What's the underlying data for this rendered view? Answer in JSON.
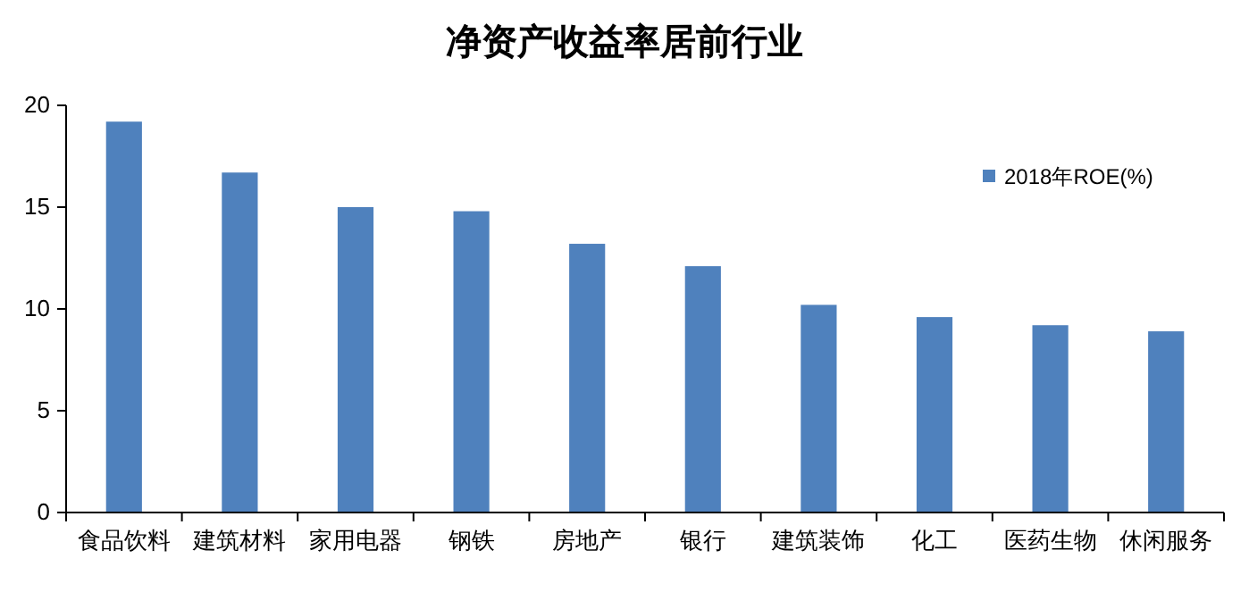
{
  "chart_data": {
    "type": "bar",
    "title": "净资产收益率居前行业",
    "categories": [
      "食品饮料",
      "建筑材料",
      "家用电器",
      "钢铁",
      "房地产",
      "银行",
      "建筑装饰",
      "化工",
      "医药生物",
      "休闲服务"
    ],
    "series": [
      {
        "name": "2018年ROE(%)",
        "color": "#4f81bd",
        "values": [
          19.2,
          16.7,
          15.0,
          14.8,
          13.2,
          12.1,
          10.2,
          9.6,
          9.2,
          8.9
        ]
      }
    ],
    "ylim": [
      0,
      20
    ],
    "yticks": [
      0,
      5,
      10,
      15,
      20
    ],
    "grid": false,
    "legend": "top right"
  }
}
